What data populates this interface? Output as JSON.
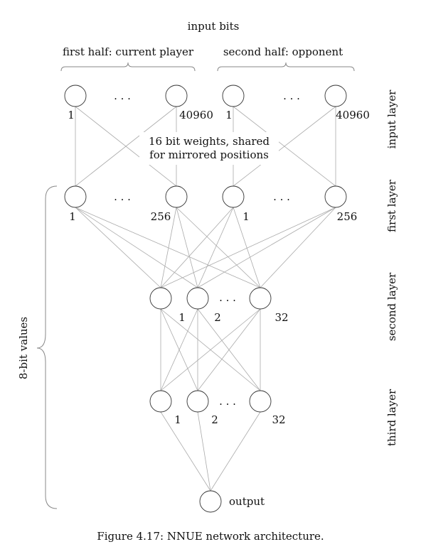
{
  "header": {
    "title": "input bits",
    "first_half": "first half: current player",
    "second_half": "second half: opponent"
  },
  "layers": {
    "input": "input layer",
    "first": "first layer",
    "second": "second layer",
    "third": "third layer"
  },
  "labels": {
    "ellipsis": ". . .",
    "in_a_start": "1",
    "in_a_end": "40960",
    "in_b_start": "1",
    "in_b_end": "40960",
    "l1_a_start": "1",
    "l1_a_end": "256",
    "l1_b_start": "1",
    "l1_b_end": "256",
    "l2_1": "1",
    "l2_2": "2",
    "l2_32": "32",
    "l3_1": "1",
    "l3_2": "2",
    "l3_32": "32",
    "output": "output"
  },
  "annotation": {
    "line1": "16 bit weights, shared",
    "line2": "for mirrored positions"
  },
  "side_label": "8-bit values",
  "caption": "Figure 4.17: NNUE network architecture.",
  "colors": {
    "node_stroke": "#333333",
    "edge": "#aaaaaa",
    "brace": "#888888"
  }
}
